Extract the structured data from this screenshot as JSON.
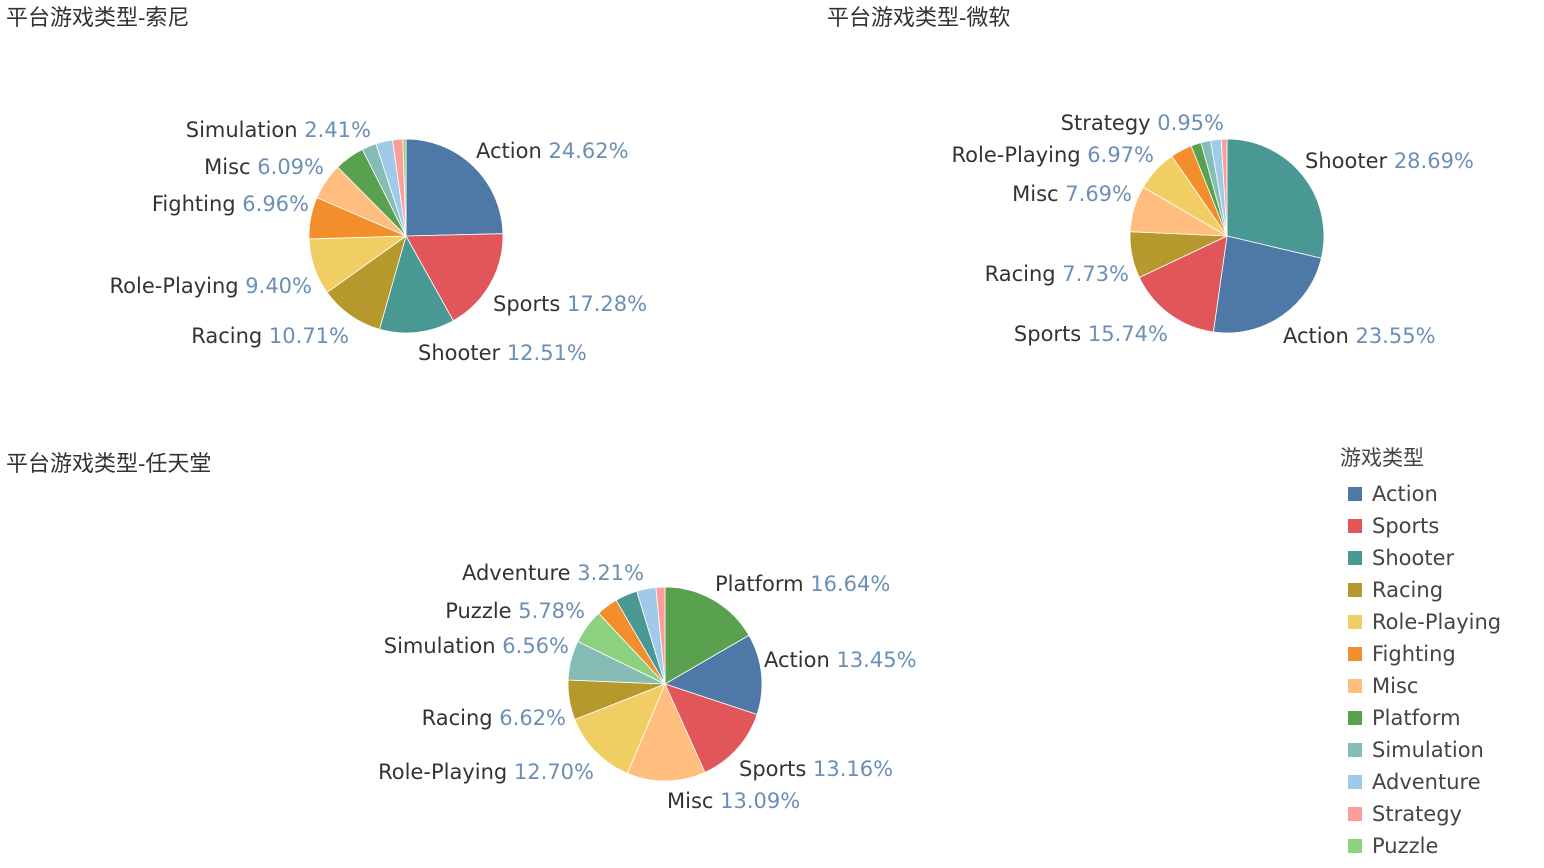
{
  "colors": {
    "Action": "#4e79a7",
    "Sports": "#e15759",
    "Shooter": "#499894",
    "Racing": "#b6992d",
    "Role-Playing": "#f1ce63",
    "Fighting": "#f28e2b",
    "Misc": "#ffbe7d",
    "Platform": "#59a14f",
    "Simulation": "#86bcb6",
    "Adventure": "#a0cbe8",
    "Strategy": "#ff9d9a",
    "Puzzle": "#8cd17d"
  },
  "legend": {
    "title": "游戏类型",
    "items": [
      "Action",
      "Sports",
      "Shooter",
      "Racing",
      "Role-Playing",
      "Fighting",
      "Misc",
      "Platform",
      "Simulation",
      "Adventure",
      "Strategy",
      "Puzzle"
    ]
  },
  "chart_data": [
    {
      "type": "pie",
      "title": "平台游戏类型-索尼",
      "slices": [
        {
          "label": "Action",
          "value": 24.62,
          "text": "24.62%"
        },
        {
          "label": "Sports",
          "value": 17.28,
          "text": "17.28%"
        },
        {
          "label": "Shooter",
          "value": 12.51,
          "text": "12.51%"
        },
        {
          "label": "Racing",
          "value": 10.71,
          "text": "10.71%"
        },
        {
          "label": "Role-Playing",
          "value": 9.4,
          "text": "9.40%"
        },
        {
          "label": "Fighting",
          "value": 6.96,
          "text": "6.96%"
        },
        {
          "label": "Misc",
          "value": 6.09,
          "text": "6.09%"
        },
        {
          "label": "Platform",
          "value": 5.0
        },
        {
          "label": "Simulation",
          "value": 2.41,
          "text": "2.41%"
        },
        {
          "label": "Adventure",
          "value": 2.8
        },
        {
          "label": "Strategy",
          "value": 1.7
        },
        {
          "label": "Puzzle",
          "value": 0.52
        }
      ]
    },
    {
      "type": "pie",
      "title": "平台游戏类型-微软",
      "slices": [
        {
          "label": "Shooter",
          "value": 28.69,
          "text": "28.69%"
        },
        {
          "label": "Action",
          "value": 23.55,
          "text": "23.55%"
        },
        {
          "label": "Sports",
          "value": 15.74,
          "text": "15.74%"
        },
        {
          "label": "Racing",
          "value": 7.73,
          "text": "7.73%"
        },
        {
          "label": "Misc",
          "value": 7.69,
          "text": "7.69%"
        },
        {
          "label": "Role-Playing",
          "value": 6.97,
          "text": "6.97%"
        },
        {
          "label": "Fighting",
          "value": 3.6
        },
        {
          "label": "Platform",
          "value": 1.7
        },
        {
          "label": "Simulation",
          "value": 1.6
        },
        {
          "label": "Adventure",
          "value": 1.78
        },
        {
          "label": "Strategy",
          "value": 0.95,
          "text": "0.95%"
        }
      ]
    },
    {
      "type": "pie",
      "title": "平台游戏类型-任天堂",
      "slices": [
        {
          "label": "Platform",
          "value": 16.64,
          "text": "16.64%"
        },
        {
          "label": "Action",
          "value": 13.45,
          "text": "13.45%"
        },
        {
          "label": "Sports",
          "value": 13.16,
          "text": "13.16%"
        },
        {
          "label": "Misc",
          "value": 13.09,
          "text": "13.09%"
        },
        {
          "label": "Role-Playing",
          "value": 12.7,
          "text": "12.70%"
        },
        {
          "label": "Racing",
          "value": 6.62,
          "text": "6.62%"
        },
        {
          "label": "Simulation",
          "value": 6.56,
          "text": "6.56%"
        },
        {
          "label": "Puzzle",
          "value": 5.78,
          "text": "5.78%"
        },
        {
          "label": "Fighting",
          "value": 3.6
        },
        {
          "label": "Shooter",
          "value": 3.7
        },
        {
          "label": "Adventure",
          "value": 3.21,
          "text": "3.21%"
        },
        {
          "label": "Strategy",
          "value": 1.49
        }
      ]
    }
  ]
}
